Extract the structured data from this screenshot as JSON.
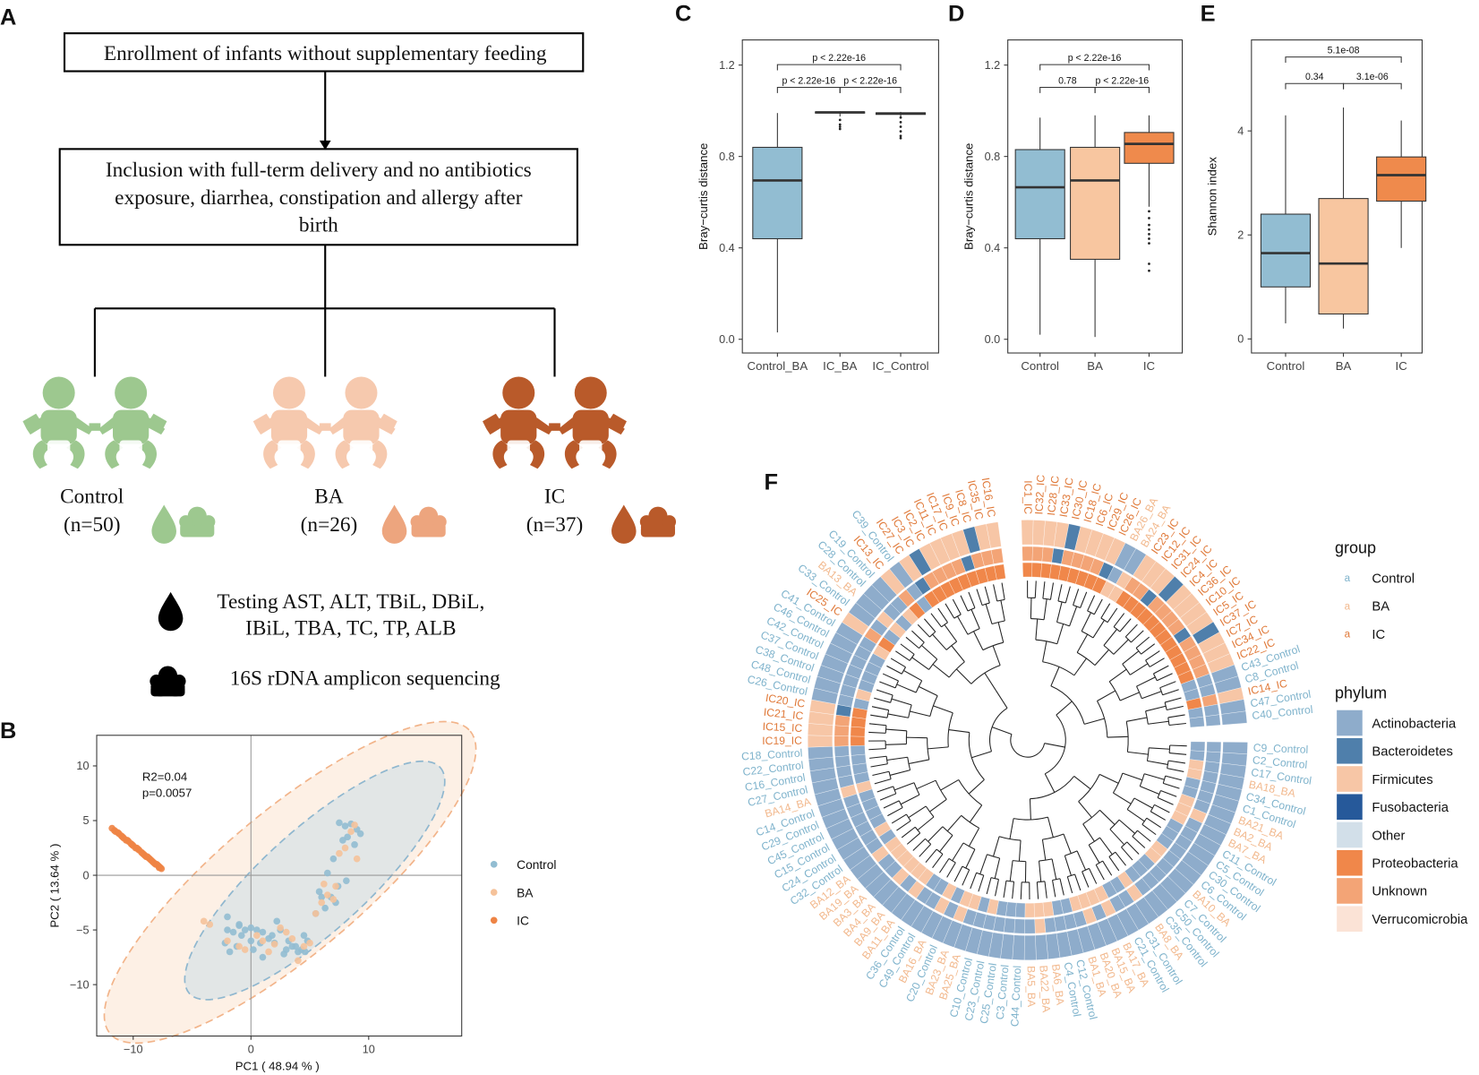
{
  "panel_labels": [
    "A",
    "B",
    "C",
    "D",
    "E",
    "F"
  ],
  "flowchart": {
    "step1": "Enrollment of infants without supplementary feeding",
    "step2": [
      "Inclusion with full-term delivery and no antibiotics",
      "exposure, diarrhea, constipation and allergy after",
      "birth"
    ],
    "groups": [
      {
        "name": "Control",
        "n": "(n=50)"
      },
      {
        "name": "BA",
        "n": "(n=26)"
      },
      {
        "name": "IC",
        "n": "(n=37)"
      }
    ],
    "tests": [
      "Testing AST, ALT, TBiL, DBiL,",
      "IBiL, TBA, TC, TP, ALB"
    ],
    "sequencing": "16S rDNA amplicon sequencing"
  },
  "chart_data": [
    {
      "type": "scatter",
      "xlabel": "PC1 ( 48.94 % )",
      "ylabel": "PC2 ( 13.64 % )",
      "annotations": [
        "R2=0.04",
        "p=0.0057"
      ],
      "xlim": [
        -13.1,
        17.9
      ],
      "ylim": [
        -14.7,
        12.8
      ],
      "xticks": [
        {
          "value": -10,
          "label": "−10"
        },
        0,
        10
      ],
      "yticks": [
        {
          "value": -10,
          "label": "−10"
        },
        {
          "value": -5,
          "label": "−5"
        },
        0,
        5,
        10
      ],
      "series": [
        {
          "name": "Control",
          "color": "#92bdd2",
          "x": [
            7.5,
            8,
            8.5,
            9,
            8.2,
            7.8,
            9.3,
            8.8,
            7,
            6.5,
            7.4,
            8.1,
            6.8,
            7.2,
            6,
            6.3,
            5.5,
            5.8,
            4.5,
            4.8,
            3.5,
            3,
            4,
            2.5,
            2,
            1.5,
            1,
            0.5,
            0,
            -0.5,
            -1,
            -1.5,
            -2,
            -2.2,
            -1.8,
            -1.2,
            -0.8,
            0.2,
            0.8,
            1.8,
            2.8,
            3.8,
            4.3,
            3.2,
            -2,
            -1,
            0,
            1,
            2.2,
            4.6
          ],
          "y": [
            4.8,
            4.5,
            4.7,
            4.2,
            3.5,
            3.2,
            3.8,
            2.8,
            1.5,
            0.2,
            -1,
            -0.5,
            -2,
            -2.5,
            -2,
            -3,
            -3.5,
            -1.5,
            -5.5,
            -6,
            -6.5,
            -6.8,
            -7,
            -5,
            -6.2,
            -5.8,
            -5.2,
            -5,
            -4.8,
            -5,
            -4.6,
            -5.2,
            -5,
            -6.2,
            -7,
            -6.5,
            -5.5,
            -6.8,
            -6.2,
            -5.5,
            -7.2,
            -6.5,
            -6.8,
            -6,
            -3.8,
            -4.5,
            -6,
            -7.5,
            -4.2,
            -7
          ]
        },
        {
          "name": "BA",
          "color": "#f5c29a",
          "x": [
            -4,
            -3.5,
            -2,
            -1,
            0.5,
            1.5,
            2,
            3,
            4,
            5,
            6,
            6.5,
            7,
            7.5,
            8,
            8.5,
            9,
            5.5,
            3.5,
            2.5,
            -0.5,
            1,
            4.5,
            7.2,
            8.8,
            6.2
          ],
          "y": [
            -4.2,
            -4.5,
            -6,
            -6.5,
            -5.5,
            -7,
            -6.3,
            -5.2,
            -7.8,
            -6.2,
            -2.5,
            -1.8,
            -2.2,
            2,
            2.5,
            4,
            1.5,
            -3.5,
            -5.8,
            -4.8,
            -6.8,
            -6,
            -6.5,
            -1,
            4.6,
            -0.8
          ]
        },
        {
          "name": "IC",
          "color": "#ee8445",
          "x": [
            -11.8,
            -11.6,
            -11.5,
            -11.3,
            -11.2,
            -11,
            -10.9,
            -10.8,
            -10.6,
            -10.5,
            -10.4,
            -10.2,
            -10.1,
            -10,
            -9.8,
            -9.7,
            -9.6,
            -9.5,
            -9.3,
            -9.2,
            -9.1,
            -9,
            -8.9,
            -8.8,
            -8.7,
            -8.6,
            -8.5,
            -8.4,
            -8.3,
            -8.2,
            -8.1,
            -8,
            -7.9,
            -7.8,
            -7.8,
            -7.7,
            -7.6
          ],
          "y": [
            4.3,
            4.1,
            4,
            3.9,
            3.8,
            3.6,
            3.5,
            3.4,
            3.2,
            3.2,
            3.1,
            2.9,
            2.8,
            2.7,
            2.5,
            2.5,
            2.4,
            2.3,
            2.1,
            2,
            1.9,
            1.8,
            1.7,
            1.7,
            1.6,
            1.5,
            1.4,
            1.3,
            1.2,
            1.1,
            1,
            1,
            0.9,
            0.8,
            0.7,
            0.7,
            0.6
          ]
        }
      ]
    },
    {
      "type": "box",
      "ylabel": "Bray−curtis distance",
      "categories": [
        "Control_BA",
        "IC_BA",
        "IC_Control"
      ],
      "colors": [
        "#92bdd2",
        "#92bdd2",
        "#92bdd2"
      ],
      "whisker_low": [
        0.03,
        0.975,
        0.97
      ],
      "q1": [
        0.44,
        0.99,
        0.984
      ],
      "median": [
        0.695,
        0.993,
        0.988
      ],
      "q3": [
        0.84,
        0.995,
        0.991
      ],
      "whisker_high": [
        0.99,
        0.998,
        0.995
      ],
      "outliers": [
        [],
        [
          0.96,
          0.94,
          0.93,
          0.92
        ],
        [
          0.97,
          0.95,
          0.93,
          0.91,
          0.89,
          0.88
        ]
      ],
      "annotations": [
        "p < 2.22e-16",
        "p < 2.22e-16",
        "p < 2.22e-16"
      ],
      "ylim": [
        -0.06,
        1.31
      ],
      "yticks": [
        {
          "value": 0,
          "label": "0.0"
        },
        0.4,
        0.8,
        1.2
      ]
    },
    {
      "type": "box",
      "ylabel": "Bray−curtis distance",
      "categories": [
        "Control",
        "BA",
        "IC"
      ],
      "colors": [
        "#92bdd2",
        "#f8c6a0",
        "#ef8a4c"
      ],
      "whisker_low": [
        0.02,
        0.01,
        0.58
      ],
      "q1": [
        0.44,
        0.35,
        0.77
      ],
      "median": [
        0.665,
        0.695,
        0.855
      ],
      "q3": [
        0.83,
        0.84,
        0.905
      ],
      "whisker_high": [
        0.97,
        0.98,
        0.98
      ],
      "outliers": [
        [],
        [],
        [
          0.56,
          0.53,
          0.5,
          0.48,
          0.46,
          0.44,
          0.42,
          0.33,
          0.3
        ]
      ],
      "annotations": [
        "p < 2.22e-16",
        "0.78",
        "p < 2.22e-16"
      ],
      "ylim": [
        -0.06,
        1.31
      ],
      "yticks": [
        {
          "value": 0,
          "label": "0.0"
        },
        0.4,
        0.8,
        1.2
      ]
    },
    {
      "type": "box",
      "ylabel": "Shannon index",
      "categories": [
        "Control",
        "BA",
        "IC"
      ],
      "colors": [
        "#92bdd2",
        "#f8c6a0",
        "#ef8a4c"
      ],
      "whisker_low": [
        0.3,
        0.2,
        1.75
      ],
      "q1": [
        1.0,
        0.48,
        2.65
      ],
      "median": [
        1.65,
        1.45,
        3.15
      ],
      "q3": [
        2.4,
        2.7,
        3.5
      ],
      "whisker_high": [
        4.3,
        4.45,
        4.2
      ],
      "outliers": [
        [],
        [],
        []
      ],
      "annotations": [
        "5.1e-08",
        "0.34",
        "3.1e-06"
      ],
      "ylim": [
        -0.27,
        5.75
      ],
      "yticks": [
        0,
        2,
        4
      ]
    }
  ],
  "tree": {
    "leaves": [
      "IC1_IC",
      "IC32_IC",
      "IC28_IC",
      "IC33_IC",
      "IC30_IC",
      "IC18_IC",
      "IC6_IC",
      "IC29_IC",
      "IC26_IC",
      "BA26_BA",
      "BA24_BA",
      "IC23_IC",
      "IC12_IC",
      "IC31_IC",
      "IC24_IC",
      "IC4_IC",
      "IC36_IC",
      "IC10_IC",
      "IC5_IC",
      "IC37_IC",
      "IC7_IC",
      "IC34_IC",
      "IC22_IC",
      "C43_Control",
      "C8_Control",
      "IC14_IC",
      "C47_Control",
      "C40_Control",
      "C9_Control",
      "C2_Control",
      "C17_Control",
      "BA18_BA",
      "C34_Control",
      "C1_Control",
      "BA21_BA",
      "BA2_BA",
      "BA7_BA",
      "C11_Control",
      "C5_Control",
      "C30_Control",
      "C6_Control",
      "BA10_BA",
      "C7_Control",
      "C50_Control",
      "C35_Control",
      "BA8_BA",
      "C31_Control",
      "C21_Control",
      "BA17_BA",
      "BA15_BA",
      "BA20_BA",
      "BA1_BA",
      "C12_Control",
      "C4_Control",
      "BA6_BA",
      "BA22_BA",
      "BA5_BA",
      "C44_Control",
      "C3_Control",
      "C25_Control",
      "C23_Control",
      "C10_Control",
      "BA25_BA",
      "BA23_BA",
      "C20_Control",
      "BA16_BA",
      "C49_Control",
      "C36_Control",
      "BA11_BA",
      "BA9_BA",
      "BA4_BA",
      "BA3_BA",
      "BA19_BA",
      "BA12_BA",
      "C32_Control",
      "C24_Control",
      "C15_Control",
      "C45_Control",
      "C29_Control",
      "C14_Control",
      "BA14_BA",
      "C27_Control",
      "C16_Control",
      "C22_Control",
      "C18_Control",
      "IC19_IC",
      "IC15_IC",
      "IC21_IC",
      "IC20_IC",
      "C26_Control",
      "C48_Control",
      "C38_Control",
      "C37_Control",
      "C42_Control",
      "C46_Control",
      "C41_Control",
      "IC25_IC",
      "C33_Control",
      "BA13_BA",
      "C28_Control",
      "C19_Control",
      "IC13_IC",
      "C39_Control",
      "IC27_IC",
      "IC3_IC",
      "IC2_IC",
      "IC11_IC",
      "IC17_IC",
      "IC9_IC",
      "IC8_IC",
      "IC35_IC",
      "IC16_IC"
    ],
    "group_title": "group",
    "group_glyph": "a",
    "groups": [
      {
        "name": "Control",
        "color": "#7fb3cc"
      },
      {
        "name": "BA",
        "color": "#f2b98e"
      },
      {
        "name": "IC",
        "color": "#e07a3a"
      }
    ],
    "phylum_title": "phylum",
    "phyla": [
      {
        "name": "Actinobacteria",
        "color": "#8eaccb"
      },
      {
        "name": "Bacteroidetes",
        "color": "#4f7fab"
      },
      {
        "name": "Firmicutes",
        "color": "#f7c6a6"
      },
      {
        "name": "Fusobacteria",
        "color": "#26599a"
      },
      {
        "name": "Other",
        "color": "#d2dfe9"
      },
      {
        "name": "Proteobacteria",
        "color": "#f0874a"
      },
      {
        "name": "Unknown",
        "color": "#f3a476"
      },
      {
        "name": "Verrucomicrobia",
        "color": "#fbe3d6"
      }
    ]
  }
}
